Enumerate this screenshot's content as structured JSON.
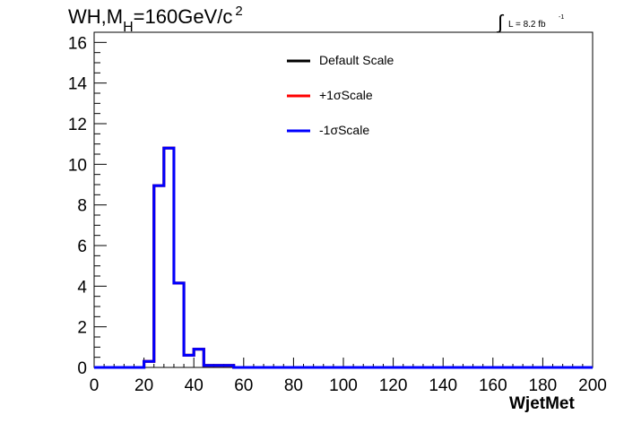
{
  "title": {
    "main": "WH,M",
    "sub": "H",
    "rest": "=160GeV/c",
    "sup": "2"
  },
  "luminosity": {
    "integral": "∫",
    "text": "L = 8.2 fb",
    "sup": "-1"
  },
  "chart_data": {
    "type": "line",
    "subtype": "step-histogram",
    "title": "WH,MH=160GeV/c 2",
    "xlabel": "WjetMet",
    "ylabel": "",
    "xlim": [
      0,
      200
    ],
    "ylim": [
      0,
      16.5
    ],
    "xticks": [
      "0",
      "20",
      "40",
      "60",
      "80",
      "100",
      "120",
      "140",
      "160",
      "180",
      "200"
    ],
    "yticks": [
      "0",
      "2",
      "4",
      "6",
      "8",
      "10",
      "12",
      "14",
      "16"
    ],
    "grid": false,
    "legend_position": "top-center",
    "bin_edges": [
      0,
      20,
      24,
      28,
      32,
      36,
      40,
      44,
      56,
      200
    ],
    "series": [
      {
        "name": "Default Scale",
        "color": "#000000",
        "values": [
          0,
          0.3,
          8.95,
          10.8,
          4.15,
          0.6,
          0.9,
          0.1,
          0
        ]
      },
      {
        "name": "+1σScale",
        "color": "#ff0000",
        "values": [
          0,
          0.3,
          8.95,
          10.8,
          4.15,
          0.6,
          0.9,
          0.1,
          0
        ]
      },
      {
        "name": "-1σScale",
        "color": "#0000ff",
        "values": [
          0,
          0.3,
          8.95,
          10.8,
          4.15,
          0.6,
          0.9,
          0.1,
          0
        ]
      }
    ]
  }
}
